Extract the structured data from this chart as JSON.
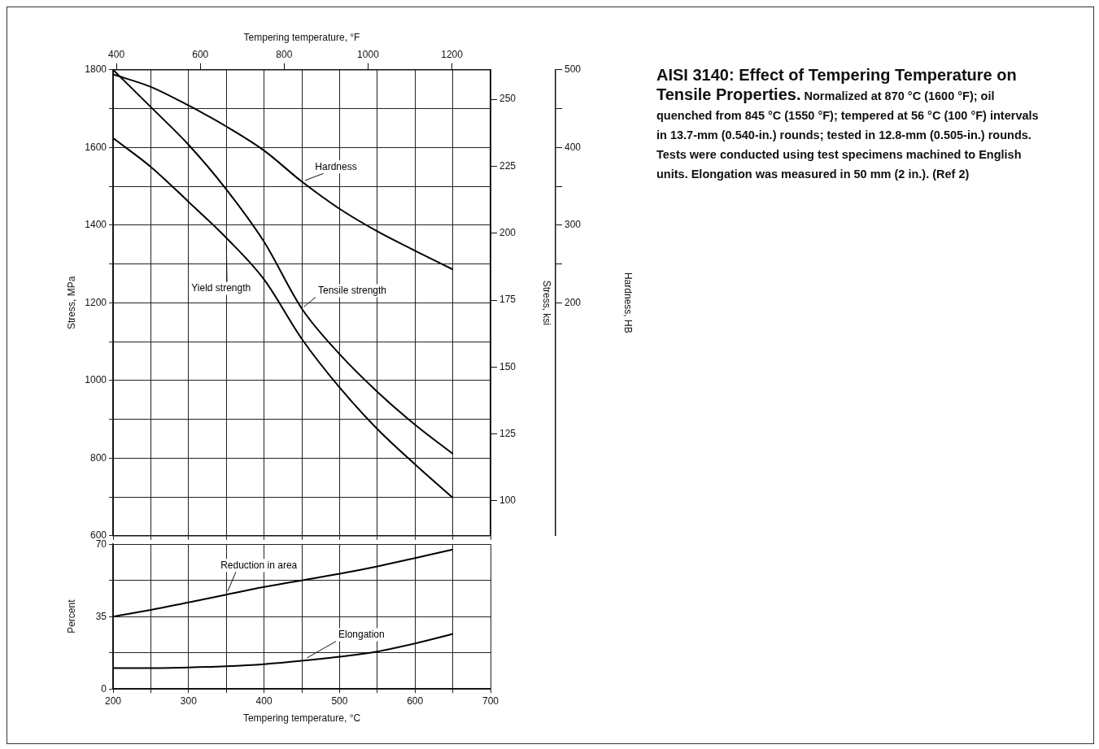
{
  "chart_data": [
    {
      "type": "line",
      "x": [
        200,
        250,
        300,
        350,
        400,
        450,
        500,
        550,
        600,
        650
      ],
      "xlim": [
        200,
        700
      ],
      "xticks": [
        200,
        {
          "value": 250,
          "label": null
        },
        300,
        {
          "value": 350,
          "label": null
        },
        400,
        {
          "value": 450,
          "label": null
        },
        500,
        {
          "value": 550,
          "label": null
        },
        600,
        {
          "value": 650,
          "label": null
        },
        700
      ],
      "x2label": "Tempering temperature, °F",
      "x2lim": [
        392,
        1292
      ],
      "x2ticks": [
        400,
        600,
        800,
        1000,
        1200
      ],
      "ylabel": "Stress, MPa",
      "ylim": [
        600,
        1800
      ],
      "yticks": [
        600,
        {
          "value": 700,
          "label": null
        },
        800,
        {
          "value": 900,
          "label": null
        },
        1000,
        {
          "value": 1100,
          "label": null
        },
        1200,
        {
          "value": 1300,
          "label": null
        },
        1400,
        {
          "value": 1500,
          "label": null
        },
        1600,
        {
          "value": 1700,
          "label": null
        },
        1800
      ],
      "y2label": "Stress, ksi",
      "y2lim": [
        87,
        261
      ],
      "y2ticks": [
        100,
        125,
        150,
        175,
        200,
        225,
        250
      ],
      "y3label": "Hardness, HB",
      "y3lim": [
        -100,
        500
      ],
      "y3ticks": [
        200,
        {
          "value": 250,
          "label": null
        },
        300,
        {
          "value": 350,
          "label": null
        },
        400,
        {
          "value": 450,
          "label": null
        },
        500
      ],
      "grid": true,
      "marker": "none",
      "line_style": "solid",
      "tick_labels": "y",
      "series": [
        {
          "name": "Tensile strength",
          "color": "#000000",
          "values": [
            1800,
            1704,
            1607,
            1492,
            1357,
            1185,
            1068,
            971,
            886,
            811
          ]
        },
        {
          "name": "Yield strength",
          "color": "#000000",
          "values": [
            1624,
            1550,
            1460,
            1367,
            1260,
            1107,
            982,
            875,
            784,
            698
          ]
        },
        {
          "name": "Hardness",
          "color": "#000000",
          "axis": "y3",
          "values": [
            494,
            478,
            454,
            427,
            396,
            356,
            321,
            292,
            267,
            243
          ]
        }
      ]
    },
    {
      "type": "line",
      "x": [
        200,
        250,
        300,
        350,
        400,
        450,
        500,
        550,
        600,
        650
      ],
      "xlabel": "Tempering temperature, °C",
      "xlim": [
        200,
        700
      ],
      "xticks": [
        200,
        {
          "value": 250,
          "label": null
        },
        300,
        {
          "value": 350,
          "label": null
        },
        400,
        {
          "value": 450,
          "label": null
        },
        500,
        {
          "value": 550,
          "label": null
        },
        600,
        {
          "value": 650,
          "label": null
        },
        700
      ],
      "ylabel": "Percent",
      "ylim": [
        0,
        70
      ],
      "yticks": [
        0,
        {
          "value": 17.5,
          "label": null
        },
        35,
        {
          "value": 52.5,
          "label": null
        },
        70
      ],
      "grid": true,
      "marker": "none",
      "line_style": "solid",
      "series": [
        {
          "name": "Reduction in area",
          "color": "#000000",
          "values": [
            35,
            38.2,
            41.9,
            45.6,
            49.3,
            52.5,
            55.7,
            59.3,
            63.3,
            67.4
          ]
        },
        {
          "name": "Elongation",
          "color": "#000000",
          "values": [
            10.1,
            10.1,
            10.4,
            11,
            12,
            13.6,
            15.6,
            18.1,
            22,
            26.6
          ]
        }
      ]
    },
    {
      "type": "other",
      "title": "AISI 3140: Effect of Tempering Temperature on Tensile Properties.",
      "subtitle": "Normalized at 870 °C (1600 °F); oil quenched from 845 °C (1550 °F); tempered at 56 °C (100 °F) intervals in 13.7-mm (0.540-in.) rounds; tested in 12.8-mm (0.505-in.) rounds. Tests were conducted using test specimens machined to English units. Elongation was measured in 50 mm (2 in.). (Ref 2)"
    }
  ]
}
